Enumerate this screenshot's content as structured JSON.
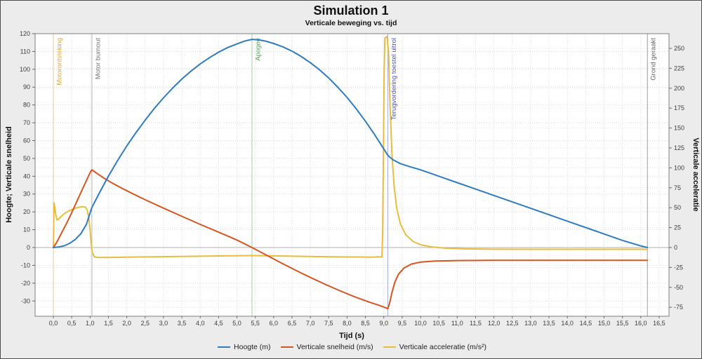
{
  "chart_data": {
    "type": "line",
    "title": "Simulation 1",
    "subtitle": "Verticale beweging vs. tijd",
    "xlabel": "Tijd (s)",
    "ylabel_left": "Hoogte; Verticale snelheid",
    "ylabel_right": "Verticale acceleratie",
    "grid": "dotted",
    "legend_position": "bottom",
    "axis_ranges": {
      "x": [
        -0.5,
        16.77
      ],
      "left": [
        -38.6,
        120.0
      ],
      "right": [
        -87.7,
        268.5
      ]
    },
    "x_ticks": [
      {
        "v": 0,
        "label": "0,0"
      },
      {
        "v": 0.5,
        "label": "0,5"
      },
      {
        "v": 1,
        "label": "1,0"
      },
      {
        "v": 1.5,
        "label": "1,5"
      },
      {
        "v": 2,
        "label": "2,0"
      },
      {
        "v": 2.5,
        "label": "2,5"
      },
      {
        "v": 3,
        "label": "3,0"
      },
      {
        "v": 3.5,
        "label": "3,5"
      },
      {
        "v": 4,
        "label": "4,0"
      },
      {
        "v": 4.5,
        "label": "4,5"
      },
      {
        "v": 5,
        "label": "5,0"
      },
      {
        "v": 5.5,
        "label": "5,5"
      },
      {
        "v": 6,
        "label": "6,0"
      },
      {
        "v": 6.5,
        "label": "6,5"
      },
      {
        "v": 7,
        "label": "7,0"
      },
      {
        "v": 7.5,
        "label": "7,5"
      },
      {
        "v": 8,
        "label": "8,0"
      },
      {
        "v": 8.5,
        "label": "8,5"
      },
      {
        "v": 9,
        "label": "9,0"
      },
      {
        "v": 9.5,
        "label": "9,5"
      },
      {
        "v": 10,
        "label": "10,0"
      },
      {
        "v": 10.5,
        "label": "10,5"
      },
      {
        "v": 11,
        "label": "11,0"
      },
      {
        "v": 11.5,
        "label": "11,5"
      },
      {
        "v": 12,
        "label": "12,0"
      },
      {
        "v": 12.5,
        "label": "12,5"
      },
      {
        "v": 13,
        "label": "13,0"
      },
      {
        "v": 13.5,
        "label": "13,5"
      },
      {
        "v": 14,
        "label": "14,0"
      },
      {
        "v": 14.5,
        "label": "14,5"
      },
      {
        "v": 15,
        "label": "15,0"
      },
      {
        "v": 15.5,
        "label": "15,5"
      },
      {
        "v": 16,
        "label": "16,0"
      },
      {
        "v": 16.5,
        "label": "16,5"
      }
    ],
    "left_ticks": [
      120,
      110,
      100,
      90,
      80,
      70,
      60,
      50,
      40,
      30,
      20,
      10,
      0,
      -10,
      -20,
      -30
    ],
    "right_ticks": [
      250,
      225,
      200,
      175,
      150,
      125,
      100,
      75,
      50,
      25,
      0,
      -25,
      -50,
      -75
    ],
    "events": [
      {
        "time": 0.0,
        "label": "Motorontsteking",
        "label_color": "#dfa53f",
        "line_color": "#eac98f"
      },
      {
        "time": 1.05,
        "label": "Motor burnout",
        "label_color": "#757575",
        "line_color": "#b3b3b3"
      },
      {
        "time": 5.41,
        "label": "Apogee",
        "label_color": "#55a055",
        "line_color": "#a8cda8"
      },
      {
        "time": 9.11,
        "label": "Terugvordering toestel uitrol",
        "label_color": "#4a52c8",
        "line_color": "#a8addc"
      },
      {
        "time": 16.18,
        "label": "Grond geraakt",
        "label_color": "#636363",
        "line_color": "#9c9c9c"
      }
    ],
    "series": [
      {
        "name": "Hoogte (m)",
        "axis": "left",
        "color": "#2e7bbf",
        "points": [
          [
            0,
            0
          ],
          [
            0.15,
            0.3
          ],
          [
            0.3,
            1
          ],
          [
            0.45,
            2.4
          ],
          [
            0.6,
            4.6
          ],
          [
            0.75,
            7.8
          ],
          [
            0.9,
            13
          ],
          [
            1.05,
            22.5
          ],
          [
            1.25,
            30.5
          ],
          [
            1.5,
            40
          ],
          [
            1.75,
            48.8
          ],
          [
            2,
            57
          ],
          [
            2.25,
            64.5
          ],
          [
            2.5,
            71.5
          ],
          [
            2.75,
            78
          ],
          [
            3,
            84
          ],
          [
            3.25,
            89.5
          ],
          [
            3.5,
            94.5
          ],
          [
            3.75,
            99
          ],
          [
            4,
            103
          ],
          [
            4.25,
            106.5
          ],
          [
            4.5,
            109.6
          ],
          [
            4.75,
            112.2
          ],
          [
            5,
            114.2
          ],
          [
            5.2,
            115.8
          ],
          [
            5.41,
            116.8
          ],
          [
            5.6,
            116.5
          ],
          [
            5.8,
            115.7
          ],
          [
            6,
            114.5
          ],
          [
            6.25,
            112.6
          ],
          [
            6.5,
            110.2
          ],
          [
            6.75,
            107.2
          ],
          [
            7,
            103.7
          ],
          [
            7.25,
            99.7
          ],
          [
            7.5,
            95.1
          ],
          [
            7.75,
            89.9
          ],
          [
            8,
            84.2
          ],
          [
            8.25,
            77.8
          ],
          [
            8.5,
            70.9
          ],
          [
            8.75,
            63.4
          ],
          [
            9,
            55.3
          ],
          [
            9.11,
            51.7
          ],
          [
            9.25,
            49.2
          ],
          [
            9.45,
            47.1
          ],
          [
            9.7,
            45.4
          ],
          [
            10,
            43.6
          ],
          [
            10.5,
            40
          ],
          [
            11,
            36.4
          ],
          [
            11.5,
            32.8
          ],
          [
            12,
            29.2
          ],
          [
            12.5,
            25.6
          ],
          [
            13,
            22
          ],
          [
            13.5,
            18.4
          ],
          [
            14,
            14.8
          ],
          [
            14.5,
            11.2
          ],
          [
            15,
            7.6
          ],
          [
            15.5,
            4
          ],
          [
            16,
            0.9
          ],
          [
            16.18,
            0
          ]
        ]
      },
      {
        "name": "Verticale snelheid (m/s)",
        "axis": "left",
        "color": "#d4551f",
        "points": [
          [
            0,
            0
          ],
          [
            0.08,
            2.5
          ],
          [
            0.17,
            6
          ],
          [
            0.27,
            10
          ],
          [
            0.37,
            14
          ],
          [
            0.47,
            18.3
          ],
          [
            0.57,
            22.7
          ],
          [
            0.67,
            27.2
          ],
          [
            0.77,
            31.8
          ],
          [
            0.87,
            36.2
          ],
          [
            0.95,
            39.8
          ],
          [
            1.02,
            42.7
          ],
          [
            1.05,
            43.6
          ],
          [
            1.1,
            42.9
          ],
          [
            1.2,
            41.4
          ],
          [
            1.35,
            39.3
          ],
          [
            1.55,
            36.8
          ],
          [
            1.8,
            34
          ],
          [
            2.1,
            30.8
          ],
          [
            2.5,
            26.8
          ],
          [
            3,
            22.1
          ],
          [
            3.5,
            17.5
          ],
          [
            4,
            13
          ],
          [
            4.5,
            8.6
          ],
          [
            5,
            4.2
          ],
          [
            5.41,
            0
          ],
          [
            5.8,
            -4.2
          ],
          [
            6.2,
            -8.6
          ],
          [
            6.6,
            -12.8
          ],
          [
            7,
            -16.8
          ],
          [
            7.4,
            -20.6
          ],
          [
            7.8,
            -24.2
          ],
          [
            8.2,
            -27.6
          ],
          [
            8.6,
            -30.6
          ],
          [
            8.9,
            -32.6
          ],
          [
            9.05,
            -33.8
          ],
          [
            9.11,
            -34.3
          ],
          [
            9.16,
            -31
          ],
          [
            9.22,
            -25.5
          ],
          [
            9.3,
            -19.5
          ],
          [
            9.4,
            -15
          ],
          [
            9.55,
            -11.5
          ],
          [
            9.75,
            -9.3
          ],
          [
            10,
            -8.2
          ],
          [
            10.4,
            -7.6
          ],
          [
            11,
            -7.3
          ],
          [
            12,
            -7.2
          ],
          [
            13.5,
            -7.2
          ],
          [
            15,
            -7.2
          ],
          [
            16.18,
            -7.2
          ]
        ]
      },
      {
        "name": "Verticale acceleratie (m/s²)",
        "axis": "right",
        "color": "#e8bd3e",
        "points": [
          [
            0,
            0
          ],
          [
            0.01,
            30
          ],
          [
            0.02,
            56
          ],
          [
            0.04,
            50
          ],
          [
            0.07,
            40
          ],
          [
            0.1,
            34.5
          ],
          [
            0.14,
            35.5
          ],
          [
            0.2,
            38.5
          ],
          [
            0.3,
            42.5
          ],
          [
            0.4,
            45.5
          ],
          [
            0.5,
            47.5
          ],
          [
            0.6,
            49.3
          ],
          [
            0.7,
            50.6
          ],
          [
            0.8,
            51.3
          ],
          [
            0.88,
            50.5
          ],
          [
            0.93,
            46
          ],
          [
            0.97,
            36
          ],
          [
            1,
            22
          ],
          [
            1.03,
            6
          ],
          [
            1.06,
            -6
          ],
          [
            1.1,
            -10.5
          ],
          [
            1.15,
            -12.2
          ],
          [
            1.25,
            -12.6
          ],
          [
            1.5,
            -12.4
          ],
          [
            2,
            -12.1
          ],
          [
            2.5,
            -11.8
          ],
          [
            3,
            -11.5
          ],
          [
            3.5,
            -11.2
          ],
          [
            4,
            -10.9
          ],
          [
            4.5,
            -10.6
          ],
          [
            5,
            -10.3
          ],
          [
            5.41,
            -10.1
          ],
          [
            5.9,
            -10.4
          ],
          [
            6.4,
            -10.8
          ],
          [
            6.9,
            -11.2
          ],
          [
            7.4,
            -11.5
          ],
          [
            7.9,
            -11.8
          ],
          [
            8.4,
            -12
          ],
          [
            8.7,
            -12.1
          ],
          [
            8.85,
            -11.6
          ],
          [
            8.95,
            -11.8
          ],
          [
            8.97,
            20
          ],
          [
            8.99,
            120
          ],
          [
            9.01,
            220
          ],
          [
            9.03,
            263
          ],
          [
            9.09,
            265
          ],
          [
            9.13,
            245
          ],
          [
            9.17,
            180
          ],
          [
            9.22,
            120
          ],
          [
            9.28,
            78
          ],
          [
            9.35,
            50
          ],
          [
            9.45,
            30
          ],
          [
            9.6,
            16
          ],
          [
            9.8,
            7.5
          ],
          [
            10,
            3.5
          ],
          [
            10.3,
            0.8
          ],
          [
            10.7,
            -0.9
          ],
          [
            11.2,
            -1.7
          ],
          [
            12,
            -2.1
          ],
          [
            13,
            -2.2
          ],
          [
            14.5,
            -2.2
          ],
          [
            16.18,
            -2.2
          ]
        ]
      }
    ]
  }
}
